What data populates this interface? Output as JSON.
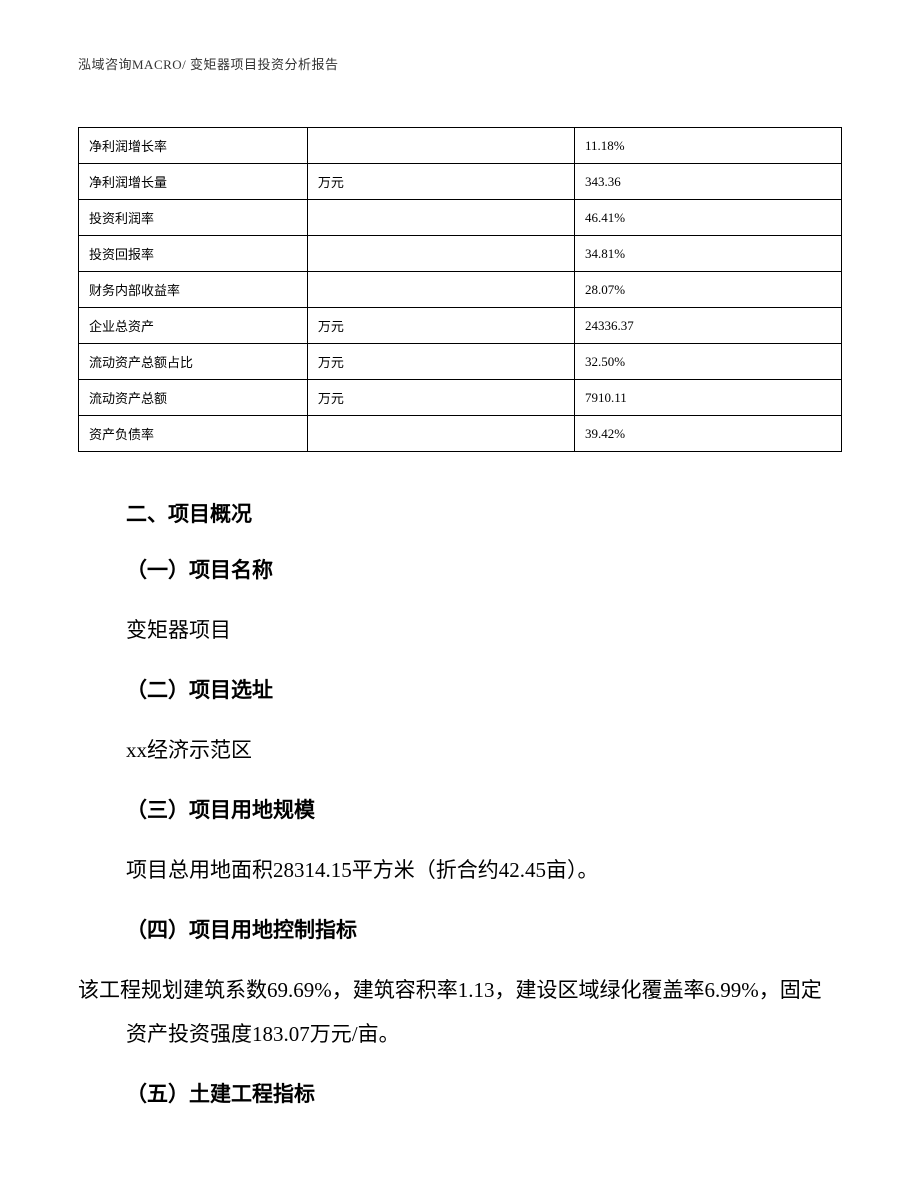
{
  "header": {
    "text": "泓域咨询MACRO/    变矩器项目投资分析报告"
  },
  "table": {
    "columns": [
      "label",
      "unit",
      "value"
    ],
    "rows": [
      {
        "label": "净利润增长率",
        "unit": "",
        "value": "11.18%"
      },
      {
        "label": "净利润增长量",
        "unit": "万元",
        "value": "343.36"
      },
      {
        "label": "投资利润率",
        "unit": "",
        "value": "46.41%"
      },
      {
        "label": "投资回报率",
        "unit": "",
        "value": "34.81%"
      },
      {
        "label": "财务内部收益率",
        "unit": "",
        "value": "28.07%"
      },
      {
        "label": "企业总资产",
        "unit": "万元",
        "value": "24336.37"
      },
      {
        "label": "流动资产总额占比",
        "unit": "万元",
        "value": "32.50%"
      },
      {
        "label": "流动资产总额",
        "unit": "万元",
        "value": "7910.11"
      },
      {
        "label": "资产负债率",
        "unit": "",
        "value": "39.42%"
      }
    ]
  },
  "sections": {
    "main_title": "二、项目概况",
    "sub1": {
      "title": "（一）项目名称",
      "text": "变矩器项目"
    },
    "sub2": {
      "title": "（二）项目选址",
      "text": "xx经济示范区"
    },
    "sub3": {
      "title": "（三）项目用地规模",
      "text": "项目总用地面积28314.15平方米（折合约42.45亩）。"
    },
    "sub4": {
      "title": "（四）项目用地控制指标",
      "text": "该工程规划建筑系数69.69%，建筑容积率1.13，建设区域绿化覆盖率6.99%，固定资产投资强度183.07万元/亩。"
    },
    "sub5": {
      "title": "（五）土建工程指标"
    }
  }
}
